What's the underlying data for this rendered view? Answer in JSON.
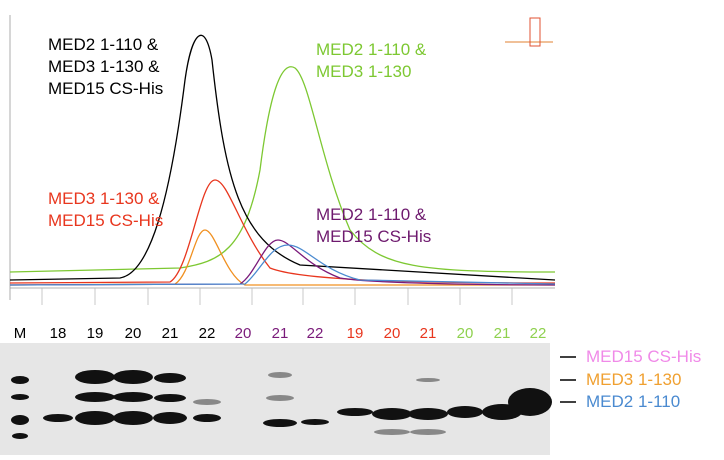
{
  "annotations": [
    {
      "lines": [
        "MED2 1-110 &",
        "MED3 1-130 &",
        "MED15 CS-His"
      ],
      "color": "#000000"
    },
    {
      "lines": [
        "MED2 1-110 &",
        "MED3 1-130"
      ],
      "color": "#7dc832"
    },
    {
      "lines": [
        "MED3 1-130 &",
        "MED15 CS-His"
      ],
      "color": "#e8361e"
    },
    {
      "lines": [
        "MED2 1-110 &",
        "MED15 CS-His"
      ],
      "color": "#6e1a6e"
    }
  ],
  "lanes": [
    {
      "label": "M",
      "color": "#000000"
    },
    {
      "label": "18",
      "color": "#000000"
    },
    {
      "label": "19",
      "color": "#000000"
    },
    {
      "label": "20",
      "color": "#000000"
    },
    {
      "label": "21",
      "color": "#000000"
    },
    {
      "label": "22",
      "color": "#000000"
    },
    {
      "label": "20",
      "color": "#7a1a7a"
    },
    {
      "label": "21",
      "color": "#7a1a7a"
    },
    {
      "label": "22",
      "color": "#7a1a7a"
    },
    {
      "label": "19",
      "color": "#e8361e"
    },
    {
      "label": "20",
      "color": "#e8361e"
    },
    {
      "label": "21",
      "color": "#e8361e"
    },
    {
      "label": "20",
      "color": "#8fd14f"
    },
    {
      "label": "21",
      "color": "#8fd14f"
    },
    {
      "label": "22",
      "color": "#8fd14f"
    }
  ],
  "band_labels": [
    {
      "text": "MED15 CS-His",
      "color": "#f08ae8"
    },
    {
      "text": "MED3 1-130",
      "color": "#f0a030"
    },
    {
      "text": "MED2 1-110",
      "color": "#4a8ad0"
    }
  ]
}
